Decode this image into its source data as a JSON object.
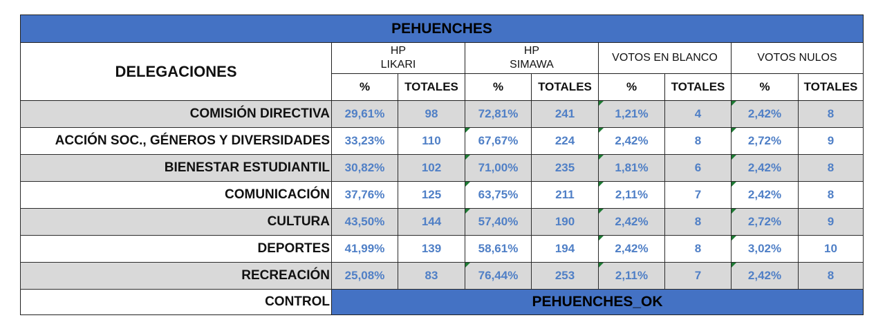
{
  "title": "PEHUENCHES",
  "header": {
    "delegaciones": "DELEGACIONES",
    "groups": [
      {
        "line1": "HP",
        "line2": "LIKARI"
      },
      {
        "line1": "HP",
        "line2": "SIMAWA"
      },
      {
        "line1": "VOTOS EN BLANCO",
        "line2": ""
      },
      {
        "line1": "VOTOS NULOS",
        "line2": ""
      }
    ],
    "pct_label": "%",
    "totals_label": "TOTALES"
  },
  "rows": [
    {
      "name": "COMISIÓN DIRECTIVA",
      "values": [
        "29,61%",
        "98",
        "72,81%",
        "241",
        "1,21%",
        "4",
        "2,42%",
        "8"
      ]
    },
    {
      "name": "ACCIÓN SOC., GÉNEROS Y DIVERSIDADES",
      "values": [
        "33,23%",
        "110",
        "67,67%",
        "224",
        "2,42%",
        "8",
        "2,72%",
        "9"
      ]
    },
    {
      "name": "BIENESTAR ESTUDIANTIL",
      "values": [
        "30,82%",
        "102",
        "71,00%",
        "235",
        "1,81%",
        "6",
        "2,42%",
        "8"
      ]
    },
    {
      "name": "COMUNICACIÓN",
      "values": [
        "37,76%",
        "125",
        "63,75%",
        "211",
        "2,11%",
        "7",
        "2,42%",
        "8"
      ]
    },
    {
      "name": "CULTURA",
      "values": [
        "43,50%",
        "144",
        "57,40%",
        "190",
        "2,42%",
        "8",
        "2,72%",
        "9"
      ]
    },
    {
      "name": "DEPORTES",
      "values": [
        "41,99%",
        "139",
        "58,61%",
        "194",
        "2,42%",
        "8",
        "3,02%",
        "10"
      ]
    },
    {
      "name": "RECREACIÓN",
      "values": [
        "25,08%",
        "83",
        "76,44%",
        "253",
        "2,11%",
        "7",
        "2,42%",
        "8"
      ]
    }
  ],
  "control": {
    "label": "CONTROL",
    "value": "PEHUENCHES_OK"
  },
  "colors": {
    "header_fill": "#4472c4",
    "value_text": "#4f7fc6",
    "band": "#d9d9d9",
    "note_marker": "#1e7b34"
  }
}
